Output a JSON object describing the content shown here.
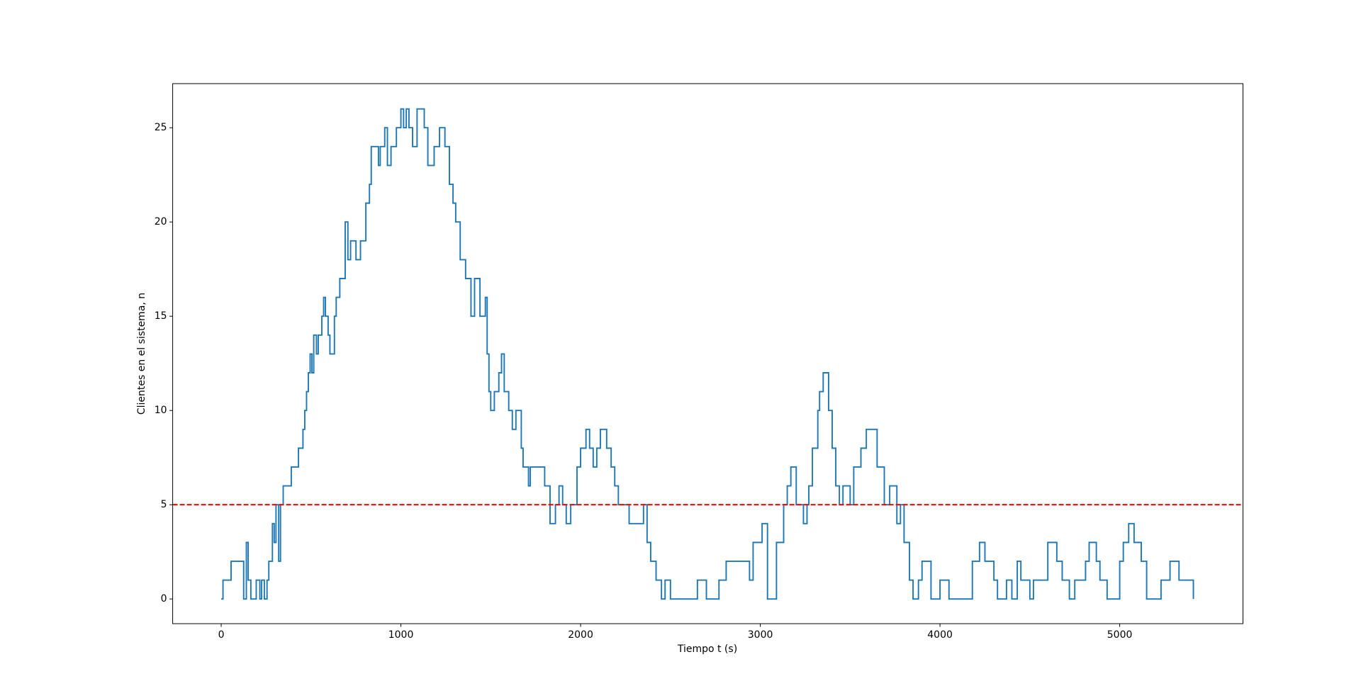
{
  "chart_data": {
    "type": "line",
    "step": "post",
    "xlabel": "Tiempo t (s)",
    "ylabel": "Clientes en el sistema, n",
    "xlim": [
      -270,
      5686
    ],
    "ylim": [
      -1.31,
      27.34
    ],
    "xticks": [
      0,
      1000,
      2000,
      3000,
      4000,
      5000
    ],
    "yticks": [
      0,
      5,
      10,
      15,
      20,
      25
    ],
    "series": [
      {
        "color": "#1f77b4",
        "x": [
          0,
          10,
          55,
          125,
          140,
          150,
          165,
          195,
          215,
          225,
          240,
          255,
          265,
          285,
          295,
          305,
          320,
          330,
          345,
          390,
          430,
          455,
          465,
          475,
          485,
          495,
          505,
          515,
          530,
          540,
          560,
          570,
          580,
          595,
          605,
          630,
          640,
          660,
          690,
          705,
          720,
          750,
          775,
          805,
          825,
          835,
          875,
          885,
          910,
          925,
          945,
          975,
          1000,
          1015,
          1030,
          1045,
          1065,
          1090,
          1130,
          1150,
          1185,
          1215,
          1245,
          1270,
          1290,
          1305,
          1330,
          1360,
          1390,
          1410,
          1440,
          1470,
          1480,
          1490,
          1500,
          1520,
          1545,
          1560,
          1575,
          1600,
          1620,
          1640,
          1670,
          1680,
          1710,
          1720,
          1800,
          1830,
          1860,
          1880,
          1900,
          1920,
          1945,
          1980,
          2000,
          2030,
          2050,
          2070,
          2090,
          2110,
          2145,
          2170,
          2190,
          2210,
          2270,
          2350,
          2370,
          2390,
          2420,
          2450,
          2470,
          2500,
          2650,
          2700,
          2770,
          2810,
          2940,
          2960,
          3010,
          3040,
          3090,
          3130,
          3150,
          3170,
          3200,
          3240,
          3260,
          3270,
          3290,
          3320,
          3330,
          3350,
          3380,
          3400,
          3420,
          3440,
          3460,
          3500,
          3520,
          3560,
          3590,
          3650,
          3690,
          3720,
          3760,
          3780,
          3800,
          3830,
          3850,
          3880,
          3900,
          3950,
          4000,
          4050,
          4180,
          4220,
          4250,
          4300,
          4320,
          4370,
          4400,
          4430,
          4450,
          4500,
          4520,
          4600,
          4650,
          4680,
          4720,
          4750,
          4810,
          4830,
          4870,
          4890,
          4930,
          5000,
          5020,
          5050,
          5080,
          5120,
          5150,
          5230,
          5280,
          5330,
          5410
        ],
        "values": [
          0,
          1,
          2,
          0,
          3,
          1,
          0,
          1,
          0,
          1,
          0,
          1,
          2,
          4,
          3,
          5,
          2,
          5,
          6,
          7,
          8,
          9,
          10,
          11,
          12,
          13,
          12,
          14,
          13,
          14,
          15,
          16,
          15,
          14,
          13,
          15,
          16,
          17,
          20,
          18,
          19,
          18,
          19,
          21,
          22,
          24,
          23,
          24,
          25,
          23,
          24,
          25,
          26,
          25,
          26,
          25,
          24,
          26,
          25,
          23,
          24,
          25,
          24,
          22,
          21,
          20,
          18,
          17,
          15,
          17,
          15,
          16,
          13,
          11,
          10,
          11,
          12,
          13,
          11,
          10,
          9,
          10,
          8,
          7,
          6,
          7,
          6,
          4,
          5,
          6,
          5,
          4,
          5,
          7,
          8,
          9,
          8,
          7,
          8,
          9,
          8,
          7,
          6,
          5,
          4,
          5,
          3,
          2,
          1,
          0,
          1,
          0,
          1,
          0,
          1,
          2,
          1,
          3,
          4,
          0,
          3,
          5,
          6,
          7,
          5,
          4,
          5,
          6,
          8,
          10,
          11,
          12,
          10,
          8,
          6,
          5,
          6,
          5,
          7,
          8,
          9,
          7,
          5,
          6,
          4,
          5,
          3,
          1,
          0,
          1,
          2,
          0,
          1,
          0,
          2,
          3,
          2,
          1,
          0,
          1,
          0,
          2,
          1,
          0,
          1,
          3,
          2,
          1,
          0,
          1,
          2,
          3,
          2,
          1,
          0,
          2,
          3,
          4,
          3,
          2,
          0,
          1,
          2,
          1,
          0
        ]
      }
    ],
    "hline": {
      "y": 5,
      "color": "#ff0000",
      "style": "dashed"
    }
  }
}
